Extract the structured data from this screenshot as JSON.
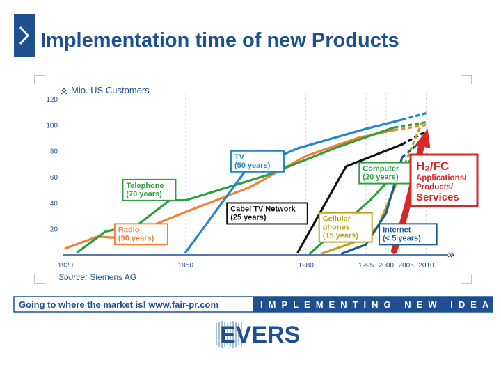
{
  "slide": {
    "title": "Implementation time of new Products",
    "source_label": "Source:",
    "source_value": "Siemens AG",
    "banner_left": "Going to where the market is!   www.fair-pr.com",
    "banner_right": "IMPLEMENTING NEW IDEAS",
    "logo_text": "EVERS",
    "h2fc_title": "H₂/FC",
    "h2fc_line1": "Applications/",
    "h2fc_line2": "Products/",
    "h2fc_line3": "Services",
    "colors": {
      "brand_blue": "#1e4f8f",
      "red": "#d42a27"
    }
  },
  "chart_data": {
    "type": "line",
    "ylabel": "Mio. US Customers",
    "xlabel": "",
    "ylim": [
      0,
      120
    ],
    "yticks": [
      20,
      40,
      60,
      80,
      100,
      120
    ],
    "xlim": [
      1920,
      2012
    ],
    "xticks": [
      1920,
      1950,
      1980,
      1995,
      2000,
      2005,
      2010
    ],
    "gridlines_vertical_at": [
      1950,
      1980,
      1995,
      2000,
      2005,
      2010
    ],
    "series": [
      {
        "name": "Radio (90 years)",
        "color": "#f08231",
        "x": [
          1920,
          1928,
          1934,
          1950,
          1966,
          1980,
          1993,
          2002
        ],
        "y": [
          5,
          14,
          13,
          33,
          52,
          76,
          90,
          96
        ],
        "proj_x": [
          2002,
          2010
        ],
        "proj_y": [
          96,
          100
        ],
        "label_x": 1933,
        "label_y": 10,
        "label_box": "outline"
      },
      {
        "name": "Telephone (70 years)",
        "color": "#2e9e42",
        "x": [
          1923,
          1930,
          1938,
          1946,
          1950,
          1970,
          1988,
          2002
        ],
        "y": [
          2,
          18,
          23,
          42,
          42,
          61,
          83,
          98
        ],
        "proj_x": [
          2002,
          2010
        ],
        "proj_y": [
          98,
          102
        ],
        "label_x": 1935,
        "label_y": 44,
        "label_box": "outline"
      },
      {
        "name": "TV (50 years)",
        "color": "#2387c9",
        "x": [
          1950,
          1965,
          1978,
          1995,
          2004
        ],
        "y": [
          2,
          65,
          82,
          97,
          104
        ],
        "proj_x": [
          2004,
          2010
        ],
        "proj_y": [
          104,
          109
        ],
        "label_x": 1962,
        "label_y": 66,
        "label_box": "outline"
      },
      {
        "name": "Cabel TV Network (25 years)",
        "color": "#111111",
        "x": [
          1978,
          1990,
          2004
        ],
        "y": [
          2,
          68,
          85
        ],
        "proj_x": [
          2004,
          2010
        ],
        "proj_y": [
          85,
          95
        ],
        "label_x": 1961,
        "label_y": 26,
        "label_box": "outline"
      },
      {
        "name": "Computer (20 years)",
        "color": "#2e9e42",
        "x": [
          1981,
          1996,
          2003
        ],
        "y": [
          1,
          42,
          65
        ],
        "proj_x": [
          2003,
          2009
        ],
        "proj_y": [
          65,
          80
        ],
        "label_x": 1994,
        "label_y": 57,
        "label_box": "outline"
      },
      {
        "name": "Cellular phones (15 years)",
        "color": "#b8a31b",
        "x": [
          1984,
          1995,
          1998,
          2004
        ],
        "y": [
          1,
          13,
          22,
          65
        ],
        "proj_x": [
          2004,
          2009
        ],
        "proj_y": [
          65,
          102
        ],
        "label_x": 1984,
        "label_y": 12,
        "label_box": "outline"
      },
      {
        "name": "Internet (< 5 years)",
        "color": "#1f5b99",
        "x": [
          1989,
          1995,
          2000,
          2004
        ],
        "y": [
          1,
          8,
          32,
          75
        ],
        "proj_x": [
          2004,
          2009
        ],
        "proj_y": [
          75,
          88
        ],
        "label_x": 1999,
        "label_y": 10,
        "label_box": "outline"
      }
    ],
    "overlay_arrow": {
      "name": "H2/FC",
      "color": "#d42a27",
      "from": [
        2002,
        3
      ],
      "to": [
        2010,
        96
      ]
    },
    "legend": "none",
    "grid": "dashed-vertical"
  }
}
